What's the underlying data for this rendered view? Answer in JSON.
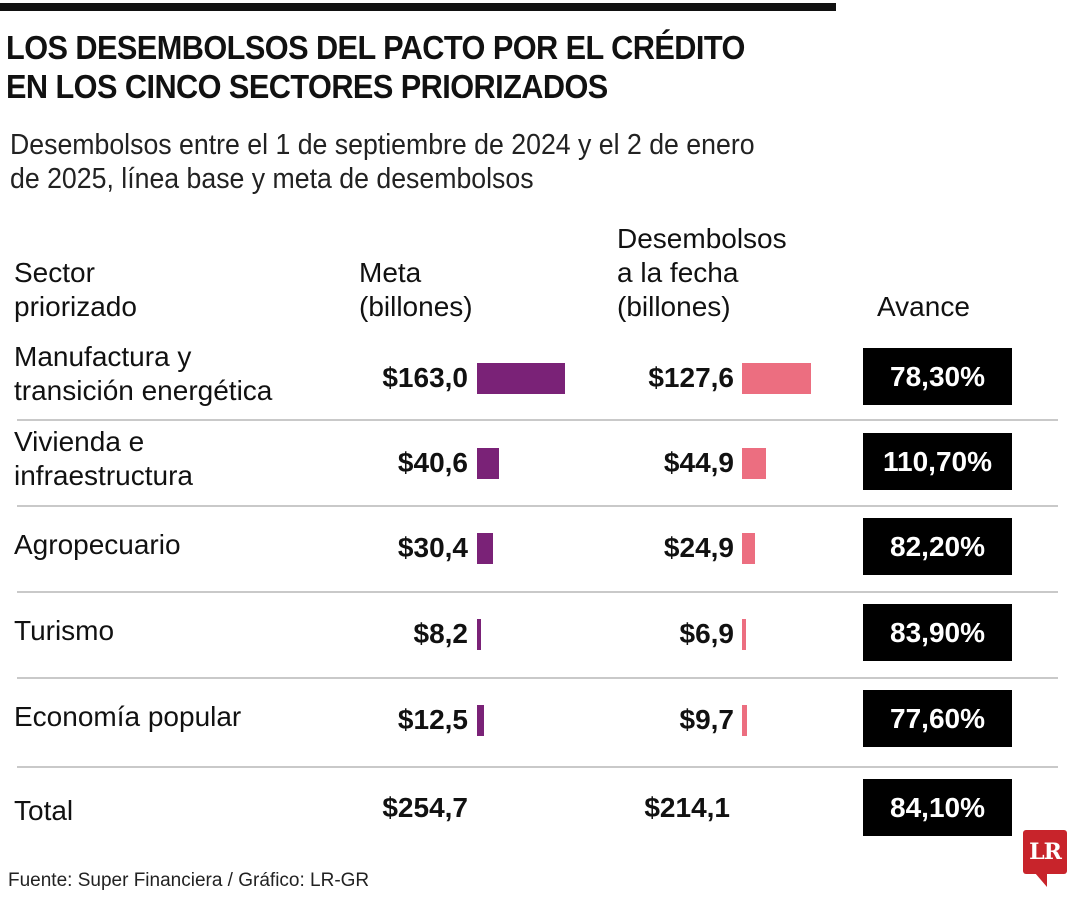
{
  "header": {
    "title_line1": "LOS DESEMBOLSOS DEL PACTO POR EL CRÉDITO",
    "title_line2": "EN LOS CINCO SECTORES PRIORIZADOS",
    "subtitle_line1": "Desembolsos entre el 1 de septiembre de 2024 y el 2 de enero",
    "subtitle_line2": "de 2025, línea base y meta de desembolsos"
  },
  "columns": {
    "sector_line1": "Sector",
    "sector_line2": "priorizado",
    "meta_line1": "Meta",
    "meta_line2": "(billones)",
    "des_line1": "Desembolsos",
    "des_line2": "a la fecha",
    "des_line3": "(billones)",
    "avance": "Avance"
  },
  "colors": {
    "meta_bar": "#7a2277",
    "desembolsos_bar": "#ec6e80",
    "badge_bg": "#000000",
    "logo": "#c8242b"
  },
  "rows": [
    {
      "sector_line1": "Manufactura y",
      "sector_line2": "transición energética",
      "meta": "$163,0",
      "desembolsos": "$127,6",
      "avance": "78,30%"
    },
    {
      "sector_line1": "Vivienda e",
      "sector_line2": "infraestructura",
      "meta": "$40,6",
      "desembolsos": "$44,9",
      "avance": "110,70%"
    },
    {
      "sector_line1": "Agropecuario",
      "sector_line2": "",
      "meta": "$30,4",
      "desembolsos": "$24,9",
      "avance": "82,20%"
    },
    {
      "sector_line1": "Turismo",
      "sector_line2": "",
      "meta": "$8,2",
      "desembolsos": "$6,9",
      "avance": "83,90%"
    },
    {
      "sector_line1": "Economía popular",
      "sector_line2": "",
      "meta": "$12,5",
      "desembolsos": "$9,7",
      "avance": "77,60%"
    }
  ],
  "total": {
    "label": "Total",
    "meta": "$254,7",
    "desembolsos": "$214,1",
    "avance": "84,10%"
  },
  "footer": {
    "source": "Fuente: Super Financiera / Gráfico: LR-GR",
    "logo_text": "LR"
  },
  "chart_data": {
    "type": "table",
    "title": "LOS DESEMBOLSOS DEL PACTO POR EL CRÉDITO EN LOS CINCO SECTORES PRIORIZADOS",
    "subtitle": "Desembolsos entre el 1 de septiembre de 2024 y el 2 de enero de 2025, línea base y meta de desembolsos",
    "columns": [
      "Sector priorizado",
      "Meta (billones)",
      "Desembolsos a la fecha (billones)",
      "Avance"
    ],
    "categories": [
      "Manufactura y transición energética",
      "Vivienda e infraestructura",
      "Agropecuario",
      "Turismo",
      "Economía popular"
    ],
    "series": [
      {
        "name": "Meta (billones)",
        "values": [
          163.0,
          40.6,
          30.4,
          8.2,
          12.5
        ]
      },
      {
        "name": "Desembolsos a la fecha (billones)",
        "values": [
          127.6,
          44.9,
          24.9,
          6.9,
          9.7
        ]
      },
      {
        "name": "Avance (%)",
        "values": [
          78.3,
          110.7,
          82.2,
          83.9,
          77.6
        ]
      }
    ],
    "total": {
      "meta": 254.7,
      "desembolsos": 214.1,
      "avance": 84.1
    },
    "source": "Fuente: Super Financiera / Gráfico: LR-GR"
  }
}
